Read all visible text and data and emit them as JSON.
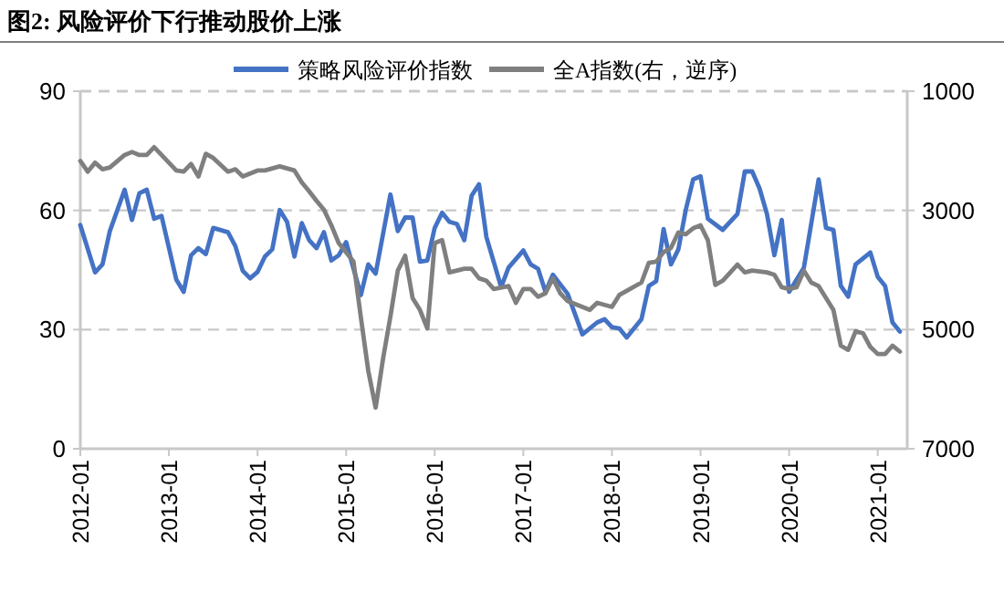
{
  "chart_data": {
    "type": "line",
    "title": "图2: 风险评价下行推动股价上涨",
    "xlim": [
      "2012-01",
      "2021-05"
    ],
    "xticks": [
      "2012-01",
      "2013-01",
      "2014-01",
      "2015-01",
      "2016-01",
      "2017-01",
      "2018-01",
      "2019-01",
      "2020-01",
      "2021-01"
    ],
    "ylim": [
      0,
      90
    ],
    "yticks": [
      0,
      30,
      60,
      90
    ],
    "y2lim": [
      7000,
      1000
    ],
    "y2ticks": [
      1000,
      3000,
      5000,
      7000
    ],
    "grid": "y",
    "legend": "top",
    "line_style": "solid",
    "marker": "none",
    "series": [
      {
        "name": "策略风险评价指数",
        "color": "#4472c4",
        "x": [
          "2012-01",
          "2012-03",
          "2012-04",
          "2012-05",
          "2012-07",
          "2012-08",
          "2012-09",
          "2012-10",
          "2012-11",
          "2012-12",
          "2013-02",
          "2013-03",
          "2013-04",
          "2013-05",
          "2013-06",
          "2013-07",
          "2013-09",
          "2013-10",
          "2013-11",
          "2013-12",
          "2014-01",
          "2014-02",
          "2014-03",
          "2014-04",
          "2014-05",
          "2014-06",
          "2014-07",
          "2014-08",
          "2014-09",
          "2014-10",
          "2014-11",
          "2014-12",
          "2015-01",
          "2015-03",
          "2015-04",
          "2015-05",
          "2015-07",
          "2015-08",
          "2015-09",
          "2015-10",
          "2015-11",
          "2015-12",
          "2016-01",
          "2016-02",
          "2016-03",
          "2016-04",
          "2016-05",
          "2016-06",
          "2016-07",
          "2016-08",
          "2016-10",
          "2016-11",
          "2017-01",
          "2017-02",
          "2017-03",
          "2017-04",
          "2017-05",
          "2017-07",
          "2017-09",
          "2017-11",
          "2017-12",
          "2018-01",
          "2018-02",
          "2018-03",
          "2018-05",
          "2018-06",
          "2018-07",
          "2018-08",
          "2018-09",
          "2018-10",
          "2018-11",
          "2018-12",
          "2019-01",
          "2019-02",
          "2019-04",
          "2019-06",
          "2019-07",
          "2019-08",
          "2019-09",
          "2019-10",
          "2019-11",
          "2019-12",
          "2020-01",
          "2020-03",
          "2020-05",
          "2020-06",
          "2020-07",
          "2020-08",
          "2020-09",
          "2020-10",
          "2020-12",
          "2021-01",
          "2021-02",
          "2021-03",
          "2021-04"
        ],
        "values": [
          56.3,
          44.4,
          46.4,
          54.8,
          65.2,
          57.6,
          64.3,
          65.2,
          57.9,
          58.6,
          42.6,
          39.5,
          48.7,
          50.5,
          49,
          55.6,
          54.5,
          51,
          44.8,
          42.9,
          44.5,
          48.4,
          50.2,
          60.1,
          57.1,
          48.4,
          56.8,
          52.5,
          50.5,
          54.5,
          47.4,
          48.7,
          52,
          38.7,
          46.4,
          44.1,
          64,
          54.8,
          58.2,
          58.2,
          47.1,
          47.4,
          55.6,
          59.4,
          57.1,
          56.6,
          52.5,
          63.7,
          66.6,
          53.3,
          40.7,
          45.6,
          49.9,
          46.4,
          45.3,
          39.5,
          43.8,
          39,
          28.8,
          31.8,
          32.6,
          30.6,
          30.3,
          28,
          32.6,
          41,
          42.2,
          55.3,
          46.4,
          50.2,
          60.1,
          67.8,
          68.6,
          57.9,
          55.1,
          59.1,
          69.8,
          69.8,
          65.5,
          59.1,
          48.7,
          57.6,
          39.5,
          45.6,
          67.8,
          55.6,
          55.1,
          41,
          38.3,
          46.4,
          49.4,
          43.3,
          41,
          31.8,
          29.5
        ]
      },
      {
        "name": "全A指数(右，逆序)",
        "color": "#7f7f7f",
        "axis": "y2",
        "x": [
          "2012-01",
          "2012-02",
          "2012-03",
          "2012-04",
          "2012-05",
          "2012-07",
          "2012-08",
          "2012-09",
          "2012-10",
          "2012-11",
          "2013-01",
          "2013-02",
          "2013-03",
          "2013-04",
          "2013-05",
          "2013-06",
          "2013-07",
          "2013-09",
          "2013-10",
          "2013-11",
          "2014-01",
          "2014-02",
          "2014-04",
          "2014-06",
          "2014-07",
          "2014-08",
          "2014-09",
          "2014-10",
          "2014-11",
          "2014-12",
          "2015-02",
          "2015-03",
          "2015-04",
          "2015-05",
          "2015-06",
          "2015-07",
          "2015-08",
          "2015-09",
          "2015-10",
          "2015-11",
          "2015-12",
          "2016-01",
          "2016-02",
          "2016-03",
          "2016-05",
          "2016-06",
          "2016-07",
          "2016-08",
          "2016-09",
          "2016-11",
          "2016-12",
          "2017-01",
          "2017-02",
          "2017-03",
          "2017-04",
          "2017-05",
          "2017-06",
          "2017-07",
          "2017-09",
          "2017-10",
          "2017-11",
          "2018-01",
          "2018-02",
          "2018-03",
          "2018-05",
          "2018-06",
          "2018-07",
          "2018-08",
          "2018-09",
          "2018-10",
          "2018-11",
          "2018-12",
          "2019-01",
          "2019-02",
          "2019-03",
          "2019-04",
          "2019-06",
          "2019-07",
          "2019-08",
          "2019-10",
          "2019-11",
          "2019-12",
          "2020-01",
          "2020-02",
          "2020-03",
          "2020-04",
          "2020-05",
          "2020-07",
          "2020-08",
          "2020-09",
          "2020-10",
          "2020-11",
          "2020-12",
          "2021-01",
          "2021-02",
          "2021-03",
          "2021-04"
        ],
        "values": [
          2170,
          2350,
          2200,
          2310,
          2280,
          2070,
          2020,
          2070,
          2070,
          1940,
          2200,
          2330,
          2350,
          2220,
          2430,
          2050,
          2120,
          2350,
          2310,
          2430,
          2330,
          2330,
          2260,
          2330,
          2530,
          2680,
          2840,
          2990,
          3250,
          3550,
          3860,
          4800,
          5690,
          6310,
          5490,
          4780,
          4010,
          3760,
          4470,
          4670,
          4980,
          3550,
          3500,
          4040,
          3980,
          3980,
          4140,
          4180,
          4320,
          4270,
          4550,
          4320,
          4320,
          4450,
          4390,
          4140,
          4390,
          4520,
          4620,
          4670,
          4550,
          4620,
          4420,
          4350,
          4210,
          3880,
          3860,
          3700,
          3630,
          3370,
          3400,
          3300,
          3250,
          3500,
          4250,
          4180,
          3910,
          4040,
          4010,
          4040,
          4080,
          4290,
          4320,
          4290,
          4010,
          4210,
          4270,
          4670,
          5270,
          5340,
          5030,
          5060,
          5290,
          5410,
          5410,
          5270,
          5370
        ]
      }
    ]
  }
}
